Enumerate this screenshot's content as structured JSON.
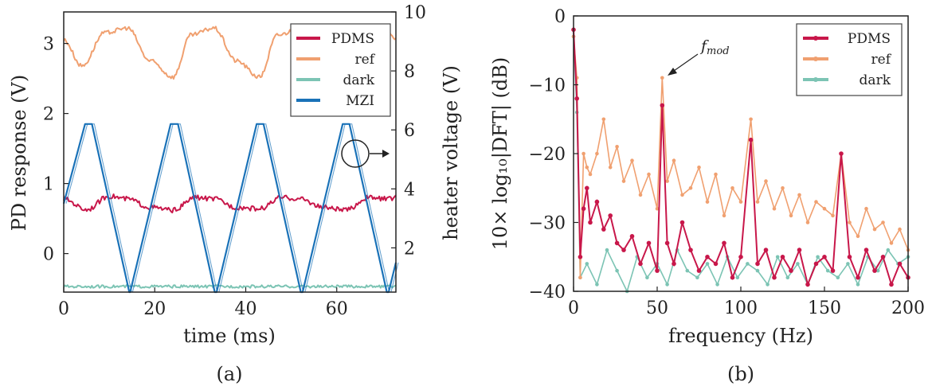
{
  "colors": {
    "PDMS": "#c8174a",
    "ref": "#f0a070",
    "dark": "#7cc4b4",
    "MZI": "#1a72b8",
    "axis": "#222222"
  },
  "chart_data": [
    {
      "panel_label": "(a)",
      "type": "line",
      "xlabel": "time (ms)",
      "ylabel": "PD response (V)",
      "y2label": "heater voltage (V)",
      "xlim": [
        0,
        73
      ],
      "ylim": [
        -0.55,
        3.45
      ],
      "y2lim": [
        0.5,
        10
      ],
      "xticks": [
        "0",
        "20",
        "40",
        "60"
      ],
      "xtick_values": [
        0,
        20,
        40,
        60
      ],
      "yticks": [
        "0",
        "1",
        "2",
        "3"
      ],
      "ytick_values": [
        0,
        1,
        2,
        3
      ],
      "y2ticks": [
        "2",
        "4",
        "6",
        "8",
        "10"
      ],
      "y2tick_values": [
        2,
        4,
        6,
        8,
        10
      ],
      "legend_position": "top-right",
      "period_ms": 18.9,
      "series": [
        {
          "name": "PDMS",
          "axis": "left",
          "x": [
            0,
            5,
            10,
            14,
            19,
            24,
            29,
            33,
            38,
            43,
            48,
            52,
            57,
            62,
            67,
            71,
            73
          ],
          "values": [
            0.78,
            0.63,
            0.82,
            0.78,
            0.66,
            0.62,
            0.8,
            0.78,
            0.66,
            0.64,
            0.8,
            0.78,
            0.66,
            0.62,
            0.8,
            0.78,
            0.8
          ]
        },
        {
          "name": "ref",
          "axis": "left",
          "x": [
            0,
            4,
            9,
            14,
            19,
            24,
            28,
            33,
            38,
            43,
            47,
            52,
            57,
            62,
            66,
            71,
            73
          ],
          "values": [
            3.05,
            2.68,
            3.15,
            3.22,
            2.75,
            2.52,
            3.12,
            3.22,
            2.75,
            2.52,
            3.12,
            3.22,
            2.75,
            2.52,
            3.12,
            3.22,
            3.05
          ]
        },
        {
          "name": "dark",
          "axis": "left",
          "x": [
            0,
            73
          ],
          "values": [
            -0.47,
            -0.47
          ]
        },
        {
          "name": "MZI",
          "axis": "right",
          "x": [
            0,
            4.7,
            6.2,
            14.4,
            14.6,
            23.5,
            25.1,
            33.2,
            33.6,
            42.4,
            43.9,
            52.1,
            52.5,
            61.3,
            62.8,
            71.0,
            71.4,
            73
          ],
          "values": [
            3.5,
            6.2,
            6.2,
            0.5,
            0.5,
            6.2,
            6.2,
            0.5,
            0.5,
            6.2,
            6.2,
            0.5,
            0.5,
            6.2,
            6.2,
            0.5,
            0.5,
            1.5
          ]
        }
      ]
    },
    {
      "panel_label": "(b)",
      "type": "line",
      "xlabel": "frequency (Hz)",
      "ylabel": "10× log₁₀|DFT| (dB)",
      "xlim": [
        0,
        200
      ],
      "ylim": [
        -40,
        0
      ],
      "xticks": [
        "0",
        "50",
        "100",
        "150",
        "200"
      ],
      "xtick_values": [
        0,
        50,
        100,
        150,
        200
      ],
      "yticks": [
        "0",
        "−10",
        "−20",
        "−30",
        "−40"
      ],
      "ytick_values": [
        0,
        -10,
        -20,
        -30,
        -40
      ],
      "annotation": {
        "text": "f",
        "subscript": "mod",
        "x": 53,
        "y": -9
      },
      "legend_position": "top-right",
      "series": [
        {
          "name": "PDMS",
          "x": [
            0,
            2,
            4,
            6,
            8,
            10,
            14,
            18,
            22,
            26,
            30,
            35,
            40,
            45,
            50,
            53,
            56,
            60,
            65,
            70,
            75,
            80,
            85,
            90,
            95,
            100,
            106,
            110,
            115,
            120,
            125,
            130,
            135,
            140,
            145,
            150,
            155,
            160,
            165,
            170,
            175,
            180,
            185,
            190,
            195,
            200
          ],
          "values": [
            -2,
            -12,
            -35,
            -28,
            -25,
            -30,
            -27,
            -31,
            -29,
            -33,
            -34,
            -32,
            -36,
            -33,
            -37,
            -13,
            -33,
            -36,
            -30,
            -34,
            -37,
            -35,
            -36,
            -33,
            -38,
            -35,
            -18,
            -36,
            -34,
            -38,
            -35,
            -37,
            -34,
            -39,
            -36,
            -35,
            -37,
            -20,
            -35,
            -38,
            -34,
            -37,
            -35,
            -39,
            -36,
            -38
          ]
        },
        {
          "name": "ref",
          "x": [
            0,
            2,
            4,
            6,
            8,
            10,
            14,
            18,
            22,
            26,
            30,
            35,
            40,
            45,
            50,
            53,
            56,
            60,
            65,
            70,
            75,
            80,
            85,
            90,
            95,
            100,
            106,
            110,
            115,
            120,
            125,
            130,
            135,
            140,
            145,
            150,
            155,
            160,
            165,
            170,
            175,
            180,
            185,
            190,
            195,
            200
          ],
          "values": [
            -3,
            -9,
            -38,
            -20,
            -22,
            -23,
            -20,
            -15,
            -22,
            -19,
            -24,
            -21,
            -26,
            -23,
            -28,
            -9,
            -24,
            -21,
            -26,
            -25,
            -22,
            -27,
            -23,
            -29,
            -25,
            -27,
            -15,
            -27,
            -24,
            -28,
            -25,
            -29,
            -26,
            -30,
            -27,
            -28,
            -29,
            -20,
            -30,
            -32,
            -28,
            -31,
            -30,
            -33,
            -31,
            -34
          ]
        },
        {
          "name": "dark",
          "x": [
            0,
            2,
            4,
            8,
            14,
            20,
            26,
            32,
            38,
            44,
            50,
            56,
            62,
            68,
            74,
            80,
            86,
            92,
            98,
            104,
            110,
            116,
            122,
            128,
            134,
            140,
            146,
            152,
            158,
            164,
            170,
            176,
            182,
            188,
            194,
            200
          ],
          "values": [
            -3,
            -14,
            -38,
            -36,
            -39,
            -34,
            -37,
            -40,
            -35,
            -38,
            -36,
            -39,
            -34,
            -37,
            -38,
            -36,
            -39,
            -35,
            -38,
            -36,
            -37,
            -39,
            -35,
            -38,
            -36,
            -39,
            -35,
            -37,
            -38,
            -36,
            -39,
            -35,
            -37,
            -34,
            -36,
            -35
          ]
        }
      ]
    }
  ]
}
